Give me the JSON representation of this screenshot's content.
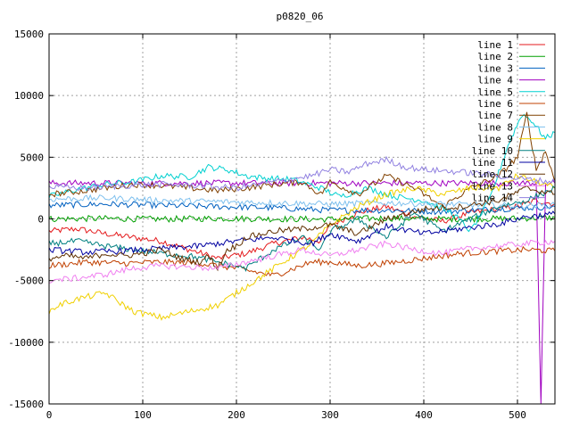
{
  "chart_data": {
    "type": "line",
    "title": "p0820_06",
    "xlabel": "",
    "ylabel": "",
    "xlim": [
      0,
      540
    ],
    "ylim": [
      -15000,
      15000
    ],
    "xticks": [
      0,
      100,
      200,
      300,
      400,
      500
    ],
    "yticks": [
      -15000,
      -10000,
      -5000,
      0,
      5000,
      10000,
      15000
    ],
    "xtick_labels": [
      "0",
      "100",
      "200",
      "300",
      "400",
      "500"
    ],
    "ytick_labels": [
      "-15000",
      "-10000",
      "-5000",
      "0",
      "5000",
      "10000",
      "15000"
    ],
    "grid": true,
    "legend_position": "top-right",
    "series": [
      {
        "name": "line 1",
        "color": "#e41a1c",
        "x": [
          0,
          30,
          60,
          90,
          120,
          150,
          180,
          210,
          240,
          270,
          290,
          300,
          330,
          360,
          390,
          420,
          450,
          480,
          500,
          520,
          540
        ],
        "y": [
          -1000,
          -800,
          -1200,
          -1500,
          -1800,
          -2500,
          -3200,
          -2800,
          -2000,
          -1500,
          -1800,
          -500,
          500,
          1000,
          200,
          -200,
          500,
          800,
          1000,
          1500,
          1200
        ]
      },
      {
        "name": "line 2",
        "color": "#00a000",
        "x": [
          0,
          60,
          120,
          180,
          240,
          300,
          360,
          420,
          480,
          540
        ],
        "y": [
          0,
          30,
          -20,
          40,
          0,
          -30,
          60,
          -10,
          20,
          100
        ]
      },
      {
        "name": "line 3",
        "color": "#0060c0",
        "x": [
          0,
          60,
          120,
          180,
          240,
          300,
          360,
          420,
          480,
          540
        ],
        "y": [
          1100,
          1200,
          1100,
          1000,
          900,
          700,
          700,
          600,
          800,
          1000
        ]
      },
      {
        "name": "line 4",
        "color": "#a000c0",
        "x": [
          0,
          40,
          80,
          120,
          160,
          200,
          240,
          280,
          320,
          360,
          400,
          440,
          480,
          500,
          510,
          520,
          525,
          530,
          540
        ],
        "y": [
          2900,
          2900,
          2900,
          2900,
          2900,
          2900,
          2900,
          2900,
          2900,
          2900,
          2900,
          2900,
          2900,
          2900,
          2900,
          2900,
          -15000,
          2900,
          2900
        ]
      },
      {
        "name": "line 5",
        "color": "#00d0d0",
        "x": [
          0,
          30,
          60,
          90,
          120,
          150,
          170,
          190,
          210,
          230,
          260,
          290,
          310,
          340,
          370,
          400,
          430,
          450,
          470,
          490,
          505,
          515,
          530,
          540
        ],
        "y": [
          1800,
          2400,
          2800,
          3000,
          3500,
          3400,
          4200,
          4000,
          3500,
          3300,
          3200,
          2500,
          1800,
          2500,
          1800,
          1500,
          500,
          -1000,
          1500,
          6000,
          8500,
          8000,
          6500,
          7000
        ]
      },
      {
        "name": "line 6",
        "color": "#c04000",
        "x": [
          0,
          40,
          80,
          120,
          160,
          200,
          240,
          280,
          300,
          330,
          360,
          400,
          440,
          480,
          510,
          540
        ],
        "y": [
          -3800,
          -3500,
          -3600,
          -3500,
          -3600,
          -4000,
          -4600,
          -3500,
          -3500,
          -3800,
          -3600,
          -3200,
          -2800,
          -2600,
          -2500,
          -2600
        ]
      },
      {
        "name": "line 7",
        "color": "#804000",
        "x": [
          0,
          30,
          60,
          90,
          120,
          150,
          180,
          210,
          240,
          270,
          290,
          300,
          330,
          360,
          390,
          420,
          450,
          480,
          500,
          510,
          520,
          530,
          540
        ],
        "y": [
          2000,
          2200,
          2500,
          2800,
          2700,
          2500,
          2300,
          2500,
          2800,
          3000,
          2000,
          3000,
          2000,
          3500,
          2500,
          1000,
          2500,
          3500,
          5000,
          8500,
          4000,
          5500,
          3000
        ]
      },
      {
        "name": "line 8",
        "color": "#7ec0ee",
        "x": [
          0,
          60,
          120,
          180,
          240,
          300,
          360,
          420,
          480,
          540
        ],
        "y": [
          1600,
          1700,
          1500,
          1400,
          1300,
          1200,
          1300,
          1200,
          1100,
          1100
        ]
      },
      {
        "name": "line 9",
        "color": "#f0d000",
        "x": [
          0,
          10,
          30,
          60,
          90,
          120,
          150,
          180,
          210,
          240,
          260,
          280,
          300,
          330,
          360,
          390,
          420,
          450,
          480,
          500,
          520,
          540
        ],
        "y": [
          -7500,
          -7000,
          -6500,
          -6000,
          -7500,
          -8000,
          -7500,
          -7000,
          -5500,
          -4000,
          -3000,
          -2000,
          -500,
          1000,
          2000,
          2500,
          2000,
          2500,
          2500,
          3500,
          3000,
          2500
        ]
      },
      {
        "name": "line 10",
        "color": "#008080",
        "x": [
          0,
          30,
          60,
          90,
          120,
          150,
          180,
          210,
          240,
          270,
          290,
          300,
          330,
          360,
          390,
          420,
          450,
          480,
          510,
          540
        ],
        "y": [
          -2000,
          -1800,
          -2200,
          -2500,
          -2800,
          -3000,
          -3500,
          -4000,
          -2500,
          -1500,
          -2500,
          -1000,
          0,
          -1500,
          500,
          -1000,
          0,
          1000,
          1500,
          2500
        ]
      },
      {
        "name": "line 11",
        "color": "#0000a0",
        "x": [
          0,
          40,
          80,
          120,
          160,
          200,
          240,
          280,
          300,
          330,
          360,
          400,
          440,
          480,
          510,
          540
        ],
        "y": [
          -2500,
          -2700,
          -2600,
          -2400,
          -2200,
          -1800,
          -1500,
          -2000,
          -1200,
          -1800,
          -600,
          -1200,
          -800,
          -400,
          200,
          400
        ]
      },
      {
        "name": "line 12",
        "color": "#603000",
        "x": [
          0,
          20,
          40,
          60,
          80,
          100,
          120,
          140,
          160,
          170,
          180,
          190,
          200,
          210,
          240,
          270,
          300,
          330,
          360,
          400,
          440,
          480,
          510,
          540
        ],
        "y": [
          -3200,
          -3000,
          -3200,
          -2800,
          -3000,
          -2800,
          -2500,
          -3200,
          -3500,
          -3000,
          -4000,
          -2500,
          -2200,
          -1500,
          -1000,
          -800,
          -500,
          -1200,
          0,
          800,
          1000,
          1500,
          2500,
          2000
        ]
      },
      {
        "name": "line 13",
        "color": "#f080f0",
        "x": [
          0,
          30,
          60,
          90,
          120,
          150,
          180,
          210,
          240,
          270,
          300,
          330,
          360,
          390,
          420,
          450,
          480,
          510,
          540
        ],
        "y": [
          -5000,
          -4800,
          -4500,
          -4000,
          -3800,
          -3900,
          -4000,
          -3500,
          -3000,
          -2500,
          -3000,
          -2500,
          -2000,
          -2500,
          -2800,
          -2400,
          -2200,
          -2000,
          -1800
        ]
      },
      {
        "name": "line 14",
        "color": "#9080e0",
        "x": [
          0,
          40,
          80,
          120,
          160,
          200,
          240,
          280,
          300,
          320,
          340,
          360,
          380,
          400,
          440,
          480,
          510,
          540
        ],
        "y": [
          2600,
          2500,
          2700,
          2800,
          2700,
          2500,
          3000,
          3500,
          4000,
          3800,
          4500,
          4800,
          4200,
          4000,
          3800,
          3500,
          3200,
          3000
        ]
      }
    ]
  }
}
